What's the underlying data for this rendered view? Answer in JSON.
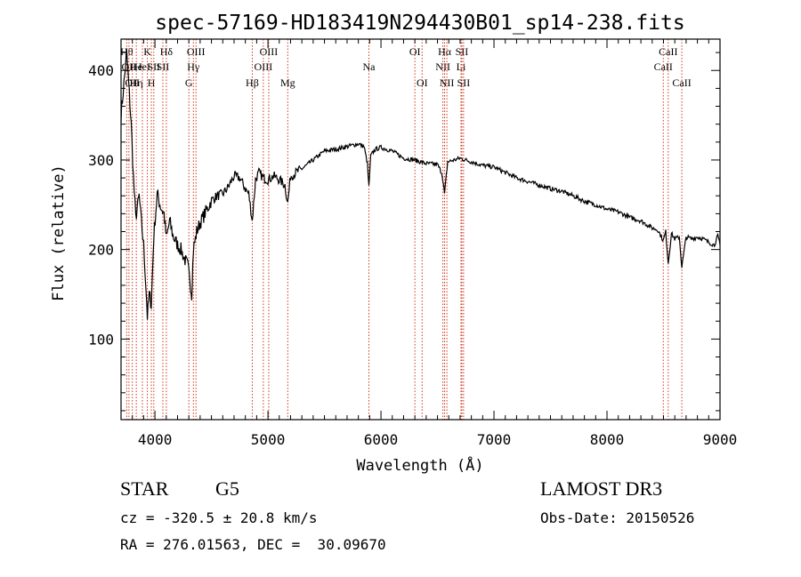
{
  "chart_data": {
    "type": "line",
    "title": "spec-57169-HD183419N294430B01_sp14-238.fits",
    "xlabel": "Wavelength (Å)",
    "ylabel": "Flux (relative)",
    "xlim": [
      3700,
      9000
    ],
    "ylim": [
      10,
      435
    ],
    "xticks": [
      4000,
      5000,
      6000,
      7000,
      8000,
      9000
    ],
    "yticks": [
      100,
      200,
      300,
      400
    ],
    "grid": false,
    "series": [
      {
        "name": "spectrum",
        "x": [
          3700,
          3750,
          3790,
          3810,
          3830,
          3860,
          3880,
          3900,
          3920,
          3933,
          3950,
          3968,
          3990,
          4020,
          4050,
          4080,
          4101,
          4130,
          4160,
          4200,
          4230,
          4260,
          4290,
          4310,
          4325,
          4340,
          4370,
          4400,
          4450,
          4500,
          4550,
          4600,
          4650,
          4700,
          4750,
          4800,
          4830,
          4861,
          4890,
          4920,
          4960,
          5000,
          5050,
          5100,
          5150,
          5175,
          5200,
          5300,
          5400,
          5500,
          5600,
          5700,
          5800,
          5850,
          5880,
          5893,
          5910,
          5950,
          6000,
          6100,
          6200,
          6300,
          6400,
          6500,
          6540,
          6563,
          6590,
          6650,
          6700,
          6800,
          6900,
          7000,
          7100,
          7200,
          7300,
          7400,
          7500,
          7600,
          7700,
          7800,
          7900,
          8000,
          8100,
          8200,
          8300,
          8400,
          8450,
          8498,
          8520,
          8542,
          8570,
          8600,
          8640,
          8662,
          8700,
          8750,
          8800,
          8850,
          8900,
          8950,
          8980,
          9000
        ],
        "values": [
          350,
          420,
          340,
          280,
          235,
          260,
          230,
          205,
          160,
          125,
          150,
          138,
          215,
          262,
          248,
          240,
          212,
          232,
          215,
          205,
          200,
          190,
          182,
          165,
          150,
          200,
          220,
          230,
          242,
          255,
          260,
          262,
          270,
          282,
          280,
          268,
          262,
          232,
          278,
          286,
          280,
          278,
          282,
          278,
          272,
          252,
          282,
          290,
          300,
          310,
          312,
          315,
          318,
          315,
          296,
          270,
          305,
          312,
          314,
          310,
          302,
          300,
          296,
          295,
          285,
          262,
          298,
          300,
          302,
          298,
          294,
          292,
          286,
          280,
          276,
          272,
          268,
          265,
          260,
          254,
          250,
          245,
          242,
          236,
          232,
          224,
          222,
          210,
          220,
          185,
          218,
          212,
          214,
          180,
          214,
          212,
          214,
          212,
          208,
          205,
          215,
          205
        ]
      }
    ],
    "lines": [
      {
        "x": 3750,
        "row": 1,
        "label": "Hθ"
      },
      {
        "x": 3770,
        "row": 2,
        "label": "OII"
      },
      {
        "x": 3800,
        "row": 3,
        "label": "OII"
      },
      {
        "x": 3835,
        "row": 2,
        "label": "He"
      },
      {
        "x": 3835,
        "row": 3,
        "label": "Hη"
      },
      {
        "x": 3889,
        "row": 2,
        "label": "HeI"
      },
      {
        "x": 3933,
        "row": 1,
        "label": "K"
      },
      {
        "x": 3968,
        "row": 3,
        "label": "H"
      },
      {
        "x": 3990,
        "row": 2,
        "label": "SII"
      },
      {
        "x": 4101,
        "row": 1,
        "label": "Hδ"
      },
      {
        "x": 4070,
        "row": 2,
        "label": "SII"
      },
      {
        "x": 4300,
        "row": 3,
        "label": "G"
      },
      {
        "x": 4340,
        "row": 2,
        "label": "Hγ"
      },
      {
        "x": 4363,
        "row": 1,
        "label": "OIII"
      },
      {
        "x": 4861,
        "row": 3,
        "label": "Hβ"
      },
      {
        "x": 4959,
        "row": 2,
        "label": "OIII"
      },
      {
        "x": 5007,
        "row": 1,
        "label": "OIII"
      },
      {
        "x": 5175,
        "row": 3,
        "label": "Mg"
      },
      {
        "x": 5893,
        "row": 2,
        "label": "Na"
      },
      {
        "x": 6300,
        "row": 1,
        "label": "OI"
      },
      {
        "x": 6364,
        "row": 3,
        "label": "OI"
      },
      {
        "x": 6548,
        "row": 2,
        "label": "NII"
      },
      {
        "x": 6563,
        "row": 1,
        "label": "Hα"
      },
      {
        "x": 6583,
        "row": 3,
        "label": "NII"
      },
      {
        "x": 6708,
        "row": 2,
        "label": "Li"
      },
      {
        "x": 6716,
        "row": 1,
        "label": "SII"
      },
      {
        "x": 6731,
        "row": 3,
        "label": "SII"
      },
      {
        "x": 8498,
        "row": 2,
        "label": "CaII"
      },
      {
        "x": 8542,
        "row": 1,
        "label": "CaII"
      },
      {
        "x": 8662,
        "row": 3,
        "label": "CaII"
      }
    ]
  },
  "info": {
    "class": "STAR",
    "subclass": "G5",
    "survey": "LAMOST DR3",
    "cz": "cz = -320.5 ± 20.8 km/s",
    "obs_date": "Obs-Date: 20150526",
    "coords": "RA = 276.01563, DEC =  30.09670"
  }
}
